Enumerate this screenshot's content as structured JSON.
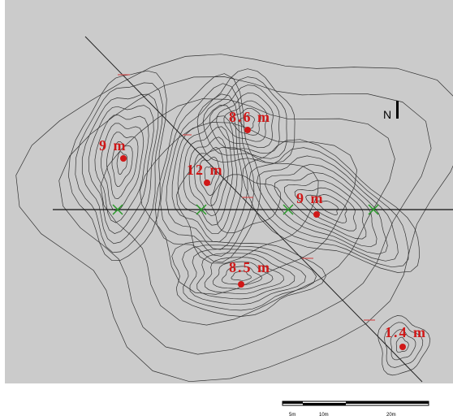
{
  "map": {
    "north_label": "N",
    "peaks": [
      {
        "label": "9 m"
      },
      {
        "label": "12 m"
      },
      {
        "label": "8.6 m"
      },
      {
        "label": "9 m"
      },
      {
        "label": "8.5 m"
      },
      {
        "label": "1.4 m"
      }
    ],
    "scale_bar": {
      "labels": [
        "5m",
        "10m",
        "20m"
      ]
    }
  }
}
